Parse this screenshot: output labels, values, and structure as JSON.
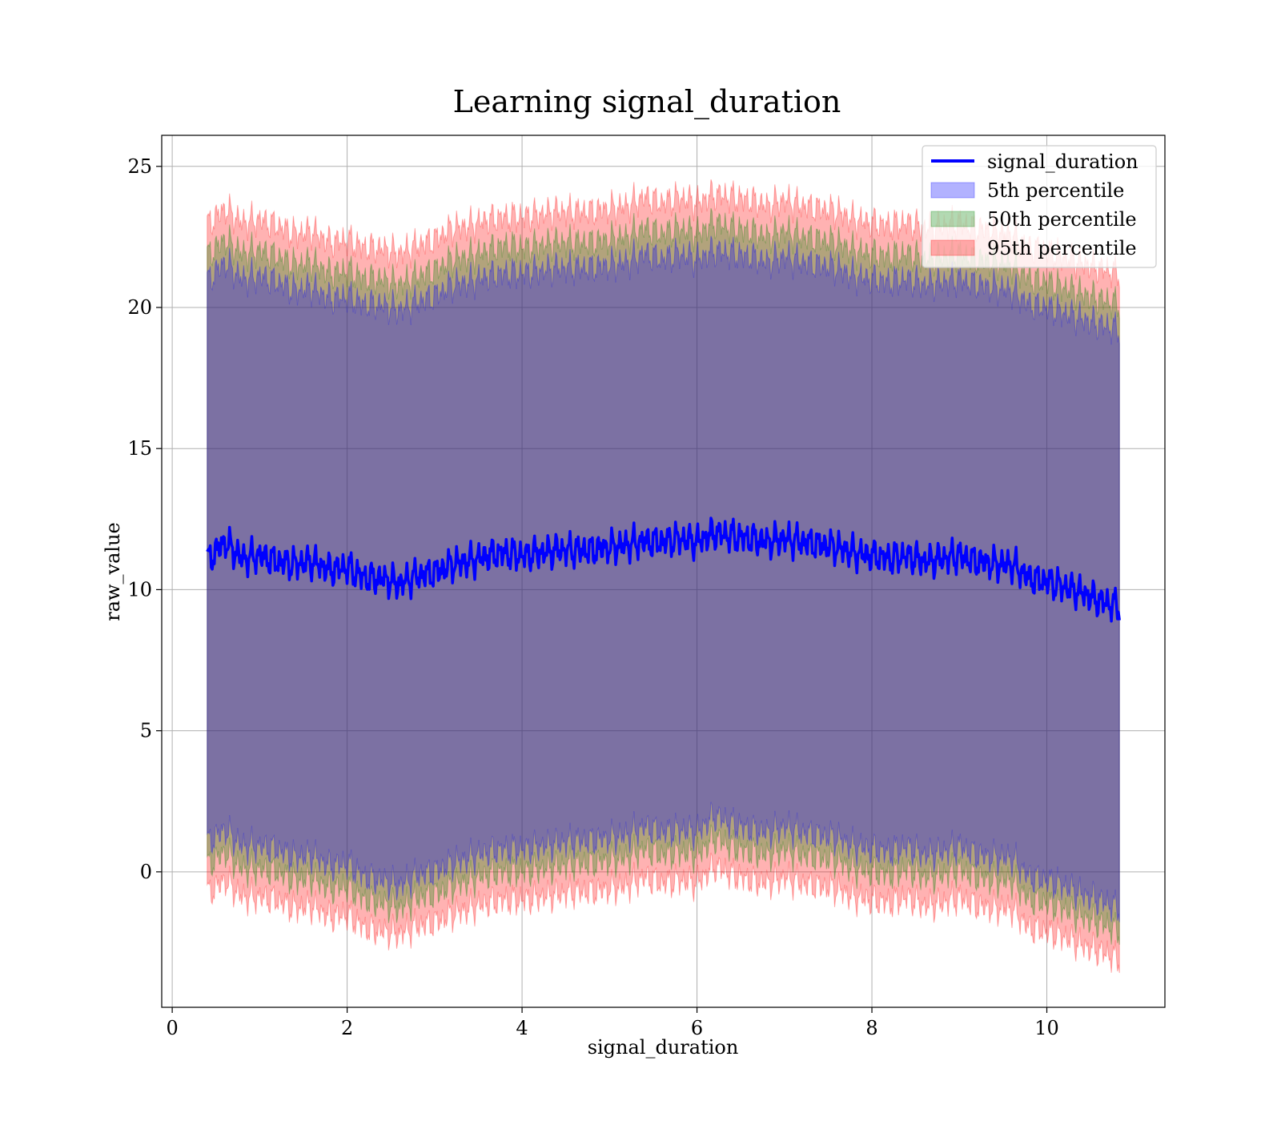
{
  "chart_data": {
    "type": "line",
    "title": "Learning signal_duration",
    "xlabel": "signal_duration",
    "ylabel": "raw_value",
    "xlim": [
      -0.12,
      11.35
    ],
    "ylim": [
      -4.8,
      26.1
    ],
    "x_ticks": [
      0,
      2,
      4,
      6,
      8,
      10
    ],
    "y_ticks": [
      0,
      5,
      10,
      15,
      20,
      25
    ],
    "x_tick_labels": [
      "0",
      "2",
      "4",
      "6",
      "8",
      "10"
    ],
    "y_tick_labels": [
      "0",
      "5",
      "10",
      "15",
      "20",
      "25"
    ],
    "grid": true,
    "legend_position": "top-right",
    "x": [
      0.4,
      0.6,
      0.8,
      1.0,
      1.2,
      1.4,
      1.6,
      1.8,
      2.0,
      2.2,
      2.4,
      2.6,
      2.8,
      3.0,
      3.2,
      3.4,
      3.6,
      3.8,
      4.0,
      4.2,
      4.4,
      4.6,
      4.8,
      5.0,
      5.2,
      5.4,
      5.6,
      5.8,
      6.0,
      6.2,
      6.4,
      6.6,
      6.8,
      7.0,
      7.2,
      7.4,
      7.6,
      7.8,
      8.0,
      8.2,
      8.4,
      8.6,
      8.8,
      9.0,
      9.2,
      9.4,
      9.6,
      9.8,
      10.0,
      10.2,
      10.4,
      10.6,
      10.83
    ],
    "series": [
      {
        "name": "signal_duration",
        "kind": "line",
        "color": "#0000ff",
        "y": [
          11.0,
          11.7,
          11.1,
          11.2,
          11.0,
          10.9,
          11.0,
          10.7,
          10.8,
          10.4,
          10.4,
          10.2,
          10.5,
          10.6,
          10.9,
          11.0,
          11.2,
          11.3,
          11.2,
          11.3,
          11.4,
          11.4,
          11.4,
          11.5,
          11.6,
          11.7,
          11.7,
          11.8,
          11.7,
          12.0,
          11.9,
          11.8,
          11.7,
          11.8,
          11.7,
          11.6,
          11.5,
          11.3,
          11.2,
          11.1,
          11.2,
          11.0,
          11.1,
          11.2,
          11.0,
          10.9,
          10.9,
          10.4,
          10.3,
          10.1,
          9.9,
          9.6,
          9.4
        ]
      },
      {
        "name": "5th percentile",
        "kind": "band",
        "color": "#0000ff",
        "lower": [
          1.0,
          1.5,
          0.9,
          0.9,
          0.8,
          0.5,
          0.6,
          0.2,
          0.3,
          -0.2,
          -0.3,
          -0.5,
          -0.1,
          0.0,
          0.3,
          0.5,
          0.7,
          0.8,
          0.8,
          0.9,
          1.0,
          1.1,
          1.1,
          1.2,
          1.3,
          1.6,
          1.4,
          1.5,
          1.4,
          2.0,
          1.7,
          1.5,
          1.4,
          1.6,
          1.4,
          1.3,
          1.2,
          0.9,
          0.8,
          0.7,
          0.9,
          0.6,
          0.7,
          0.9,
          0.6,
          0.5,
          0.5,
          -0.2,
          -0.3,
          -0.5,
          -0.8,
          -1.0,
          -1.3
        ],
        "upper": [
          20.9,
          21.6,
          21.0,
          21.1,
          20.9,
          20.6,
          20.7,
          20.3,
          20.4,
          20.1,
          20.1,
          19.9,
          20.2,
          20.4,
          20.8,
          20.9,
          21.1,
          21.2,
          21.2,
          21.3,
          21.4,
          21.4,
          21.4,
          21.5,
          21.6,
          21.9,
          21.7,
          21.9,
          21.7,
          22.0,
          21.9,
          21.8,
          21.6,
          21.8,
          21.6,
          21.5,
          21.4,
          21.1,
          21.0,
          20.9,
          21.0,
          20.8,
          20.9,
          21.0,
          20.8,
          20.7,
          20.6,
          20.1,
          20.0,
          19.8,
          19.6,
          19.4,
          19.2
        ]
      },
      {
        "name": "50th percentile",
        "kind": "band",
        "color": "#008000",
        "lower": [
          0.2,
          0.7,
          0.1,
          0.1,
          0.0,
          -0.3,
          -0.2,
          -0.6,
          -0.5,
          -1.0,
          -1.1,
          -1.3,
          -0.9,
          -0.8,
          -0.5,
          -0.3,
          -0.1,
          0.0,
          0.0,
          0.1,
          0.2,
          0.3,
          0.3,
          0.4,
          0.5,
          0.8,
          0.6,
          0.7,
          0.6,
          1.2,
          0.9,
          0.7,
          0.6,
          0.8,
          0.6,
          0.5,
          0.4,
          0.1,
          0.0,
          -0.1,
          0.1,
          -0.2,
          -0.1,
          0.1,
          -0.2,
          -0.3,
          -0.3,
          -1.0,
          -1.1,
          -1.3,
          -1.6,
          -1.8,
          -2.1
        ],
        "upper": [
          21.8,
          22.4,
          21.9,
          22.0,
          21.8,
          21.5,
          21.6,
          21.2,
          21.3,
          21.0,
          21.0,
          20.8,
          21.1,
          21.3,
          21.7,
          21.8,
          22.0,
          22.2,
          22.1,
          22.2,
          22.3,
          22.3,
          22.3,
          22.4,
          22.5,
          22.8,
          22.6,
          22.8,
          22.6,
          23.0,
          22.8,
          22.7,
          22.5,
          22.7,
          22.5,
          22.4,
          22.3,
          22.0,
          21.9,
          21.8,
          21.9,
          21.7,
          21.8,
          21.9,
          21.7,
          21.6,
          21.5,
          21.0,
          20.9,
          20.7,
          20.5,
          20.3,
          20.1
        ]
      },
      {
        "name": "95th percentile",
        "kind": "band",
        "color": "#ff0000",
        "lower": [
          -0.8,
          -0.3,
          -0.9,
          -0.9,
          -1.0,
          -1.3,
          -1.2,
          -1.6,
          -1.5,
          -2.0,
          -2.1,
          -2.2,
          -1.9,
          -1.8,
          -1.5,
          -1.3,
          -1.1,
          -1.0,
          -1.0,
          -0.9,
          -0.8,
          -0.7,
          -0.7,
          -0.6,
          -0.5,
          -0.2,
          -0.4,
          -0.3,
          -0.4,
          0.2,
          -0.1,
          -0.3,
          -0.4,
          -0.2,
          -0.4,
          -0.5,
          -0.6,
          -0.9,
          -1.0,
          -1.1,
          -0.9,
          -1.2,
          -1.1,
          -0.9,
          -1.2,
          -1.3,
          -1.3,
          -2.0,
          -2.1,
          -2.3,
          -2.6,
          -2.8,
          -3.1
        ],
        "upper": [
          22.9,
          23.5,
          23.0,
          23.1,
          22.9,
          22.6,
          22.7,
          22.3,
          22.4,
          22.1,
          22.1,
          21.9,
          22.2,
          22.4,
          22.8,
          22.9,
          23.1,
          23.2,
          23.2,
          23.3,
          23.4,
          23.4,
          23.4,
          23.5,
          23.6,
          23.9,
          23.7,
          23.9,
          23.7,
          24.0,
          23.9,
          23.8,
          23.6,
          23.8,
          23.6,
          23.5,
          23.4,
          23.1,
          23.0,
          22.9,
          23.0,
          22.8,
          22.9,
          23.0,
          22.8,
          22.7,
          22.6,
          22.1,
          22.0,
          21.8,
          21.6,
          21.4,
          21.2
        ]
      }
    ]
  }
}
